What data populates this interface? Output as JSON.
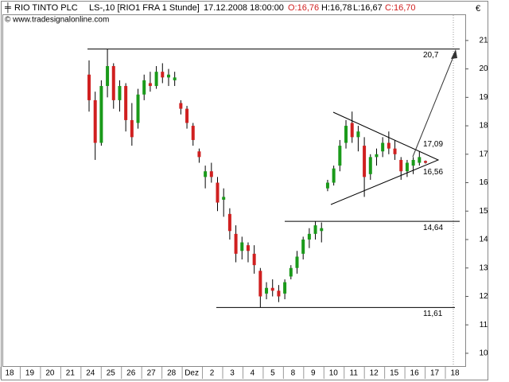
{
  "chart_data": {
    "type": "candlestick",
    "title": "RIO TINTO PLC",
    "subtitle": "LS-,10 [RIO1 FRA  1 Stunde]",
    "timestamp": "17.12.2008 18:00:00",
    "ohlc_labels": [
      "O:16,76",
      "H:16,78",
      "L:16,67",
      "C:16,70"
    ],
    "source": "© www.tradesignalonline.com",
    "currency": "€",
    "categories": [
      "18",
      "19",
      "20",
      "21",
      "24",
      "25",
      "26",
      "27",
      "28",
      "Dez",
      "2",
      "3",
      "4",
      "5",
      "8",
      "9",
      "10",
      "11",
      "12",
      "15",
      "16",
      "17",
      "18"
    ],
    "open": [
      19.8,
      18.9,
      17.4,
      19.4,
      20.1,
      18.9,
      19.4,
      18.2,
      18.1,
      19.1,
      19.5,
      19.4,
      19.9,
      19.7,
      19.6,
      18.8,
      18.6,
      18.0,
      17.1,
      16.2,
      16.4,
      16.0,
      15.4,
      14.9,
      14.2,
      13.6,
      13.8,
      13.5,
      12.9,
      12.1,
      12.3,
      12.2,
      12.1,
      12.7,
      13.0,
      13.5,
      14.0,
      14.2,
      14.3,
      15.8,
      16.0,
      16.6,
      17.4,
      18.1,
      17.6,
      17.3,
      16.3,
      16.9,
      17.1,
      17.4,
      17.2,
      16.8,
      16.4,
      16.6,
      16.7,
      16.76
    ],
    "high": [
      20.3,
      19.2,
      19.6,
      20.7,
      20.2,
      19.6,
      19.5,
      18.8,
      19.3,
      19.8,
      19.9,
      20.1,
      20.2,
      20.0,
      19.9,
      18.9,
      18.7,
      18.1,
      17.2,
      16.6,
      16.7,
      16.2,
      15.8,
      15.1,
      14.5,
      14.1,
      13.9,
      13.8,
      13.0,
      12.5,
      12.6,
      12.4,
      12.6,
      13.1,
      13.6,
      14.1,
      14.4,
      14.64,
      14.6,
      16.1,
      16.6,
      17.5,
      18.2,
      18.5,
      18.0,
      17.6,
      17.0,
      17.2,
      17.6,
      17.8,
      17.5,
      16.9,
      16.8,
      16.9,
      17.1,
      16.78
    ],
    "low": [
      18.5,
      16.8,
      17.3,
      19.0,
      18.6,
      18.5,
      17.8,
      17.3,
      17.9,
      18.9,
      19.2,
      19.3,
      19.5,
      19.4,
      19.4,
      18.4,
      17.9,
      17.3,
      16.7,
      15.8,
      16.0,
      15.0,
      14.8,
      14.0,
      13.2,
      13.3,
      13.2,
      12.8,
      11.61,
      11.9,
      12.0,
      11.8,
      11.9,
      12.6,
      12.8,
      13.3,
      13.7,
      14.0,
      13.9,
      15.7,
      15.9,
      16.4,
      17.2,
      17.4,
      17.1,
      15.5,
      16.1,
      16.6,
      16.9,
      17.0,
      16.8,
      16.1,
      16.2,
      16.3,
      16.6,
      16.67
    ],
    "close": [
      18.9,
      17.4,
      19.4,
      20.1,
      18.9,
      19.4,
      18.2,
      17.6,
      19.1,
      19.6,
      19.4,
      19.9,
      19.7,
      19.8,
      19.7,
      18.6,
      18.1,
      17.5,
      16.9,
      16.4,
      16.2,
      15.3,
      15.5,
      14.3,
      13.5,
      13.9,
      13.6,
      13.1,
      12.0,
      12.3,
      12.2,
      12.0,
      12.5,
      13.0,
      13.4,
      14.0,
      14.2,
      14.5,
      14.4,
      16.0,
      16.5,
      17.3,
      18.0,
      17.6,
      17.8,
      16.2,
      16.9,
      17.0,
      17.4,
      17.2,
      17.0,
      16.4,
      16.7,
      16.8,
      16.9,
      16.7
    ],
    "up_color": "#1a9a1a",
    "down_color": "#d02020",
    "ylim": [
      9.55,
      21.92
    ],
    "yticks": [
      10,
      11,
      12,
      13,
      14,
      15,
      16,
      17,
      18,
      19,
      20,
      21
    ],
    "levels": [
      {
        "value": 20.7,
        "label": "20,7"
      },
      {
        "value": 14.64,
        "label": "14,64"
      },
      {
        "value": 11.61,
        "label": "11,61"
      }
    ],
    "triangle_labels": [
      {
        "value": 17.09,
        "label": "17,09"
      },
      {
        "value": 16.56,
        "label": "16,56"
      }
    ]
  }
}
